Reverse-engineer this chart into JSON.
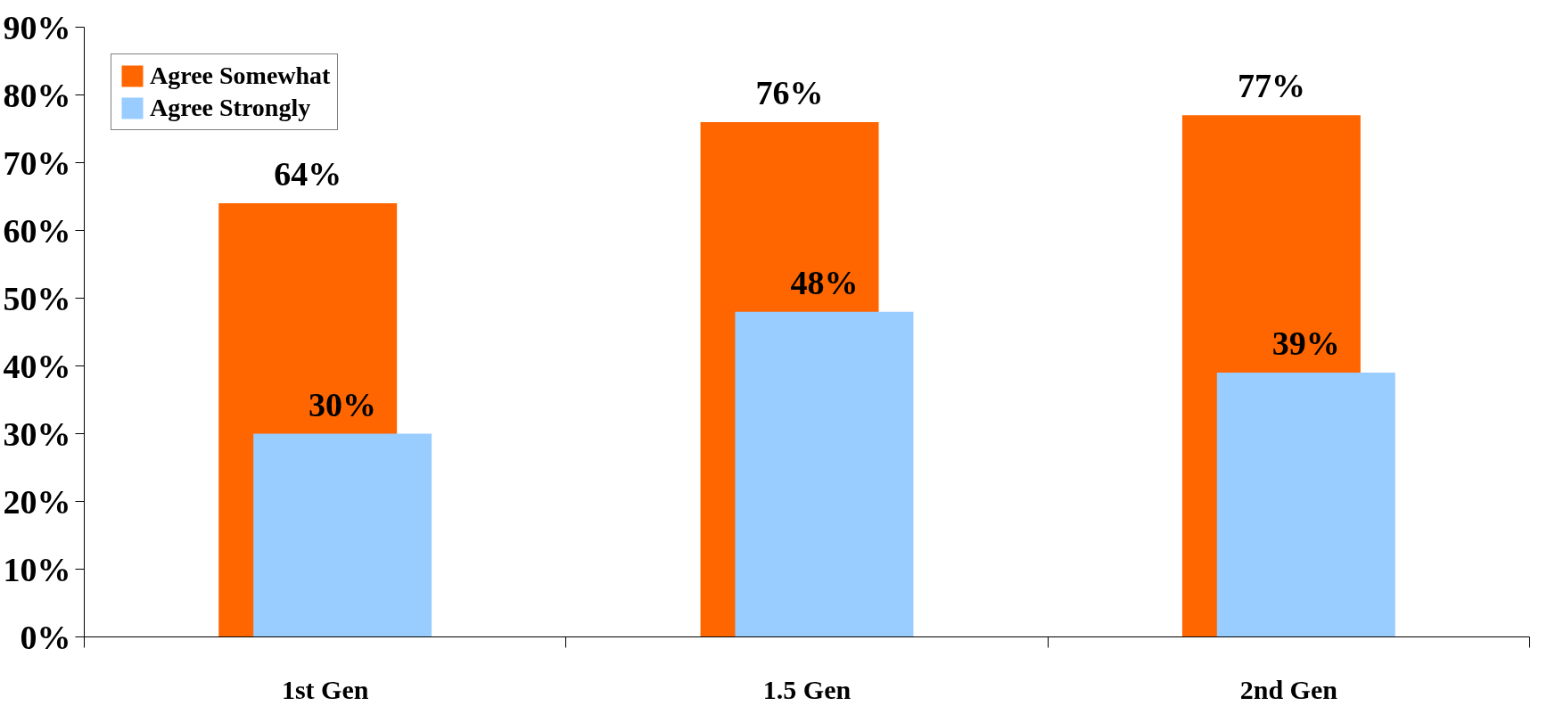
{
  "chart_data": {
    "type": "bar",
    "categories": [
      "1st Gen",
      "1.5 Gen",
      "2nd Gen"
    ],
    "series": [
      {
        "name": "Agree Somewhat",
        "color": "#ff6600",
        "values": [
          64,
          76,
          77
        ],
        "value_labels": [
          "64%",
          "76%",
          "77%"
        ]
      },
      {
        "name": "Agree Strongly",
        "color": "#99ccff",
        "values": [
          30,
          48,
          39
        ],
        "value_labels": [
          "30%",
          "48%",
          "39%"
        ]
      }
    ],
    "ylim": [
      0,
      90
    ],
    "yticks": [
      {
        "value": 0,
        "label": "0%"
      },
      {
        "value": 10,
        "label": "10%"
      },
      {
        "value": 20,
        "label": "20%"
      },
      {
        "value": 30,
        "label": "30%"
      },
      {
        "value": 40,
        "label": "40%"
      },
      {
        "value": 50,
        "label": "50%"
      },
      {
        "value": 60,
        "label": "60%"
      },
      {
        "value": 70,
        "label": "70%"
      },
      {
        "value": 80,
        "label": "80%"
      },
      {
        "value": 90,
        "label": "90%"
      }
    ],
    "grid": false,
    "legend": "top left"
  }
}
